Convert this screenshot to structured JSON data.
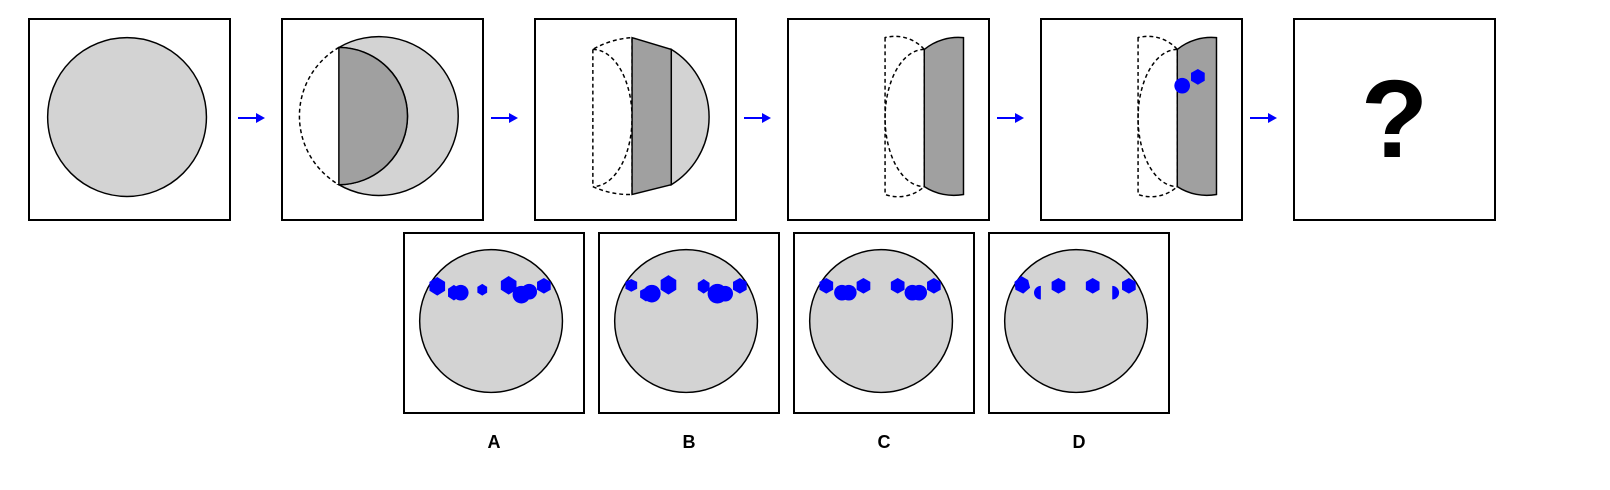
{
  "question_mark": "?",
  "options": [
    {
      "label": "A"
    },
    {
      "label": "B"
    },
    {
      "label": "C"
    },
    {
      "label": "D"
    }
  ],
  "colors": {
    "paper": "#d3d3d3",
    "fold": "#a0a0a0",
    "hole": "#0000ff",
    "arrow": "#0000ff"
  }
}
